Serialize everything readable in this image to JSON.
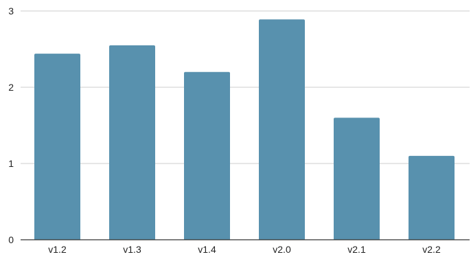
{
  "chart_data": {
    "type": "bar",
    "title": "",
    "xlabel": "",
    "ylabel": "",
    "categories": [
      "v1.2",
      "v1.3",
      "v1.4",
      "v2.0",
      "v2.1",
      "v2.2"
    ],
    "values": [
      2.44,
      2.55,
      2.2,
      2.89,
      1.6,
      1.1
    ],
    "ylim": [
      0,
      3
    ],
    "yticks": [
      "0",
      "1",
      "2",
      "3"
    ],
    "grid": true,
    "legend": "none",
    "colors": {
      "bar": "#5891ae",
      "grid": "#cccccc",
      "axis": "#333333",
      "text": "#222222"
    }
  }
}
